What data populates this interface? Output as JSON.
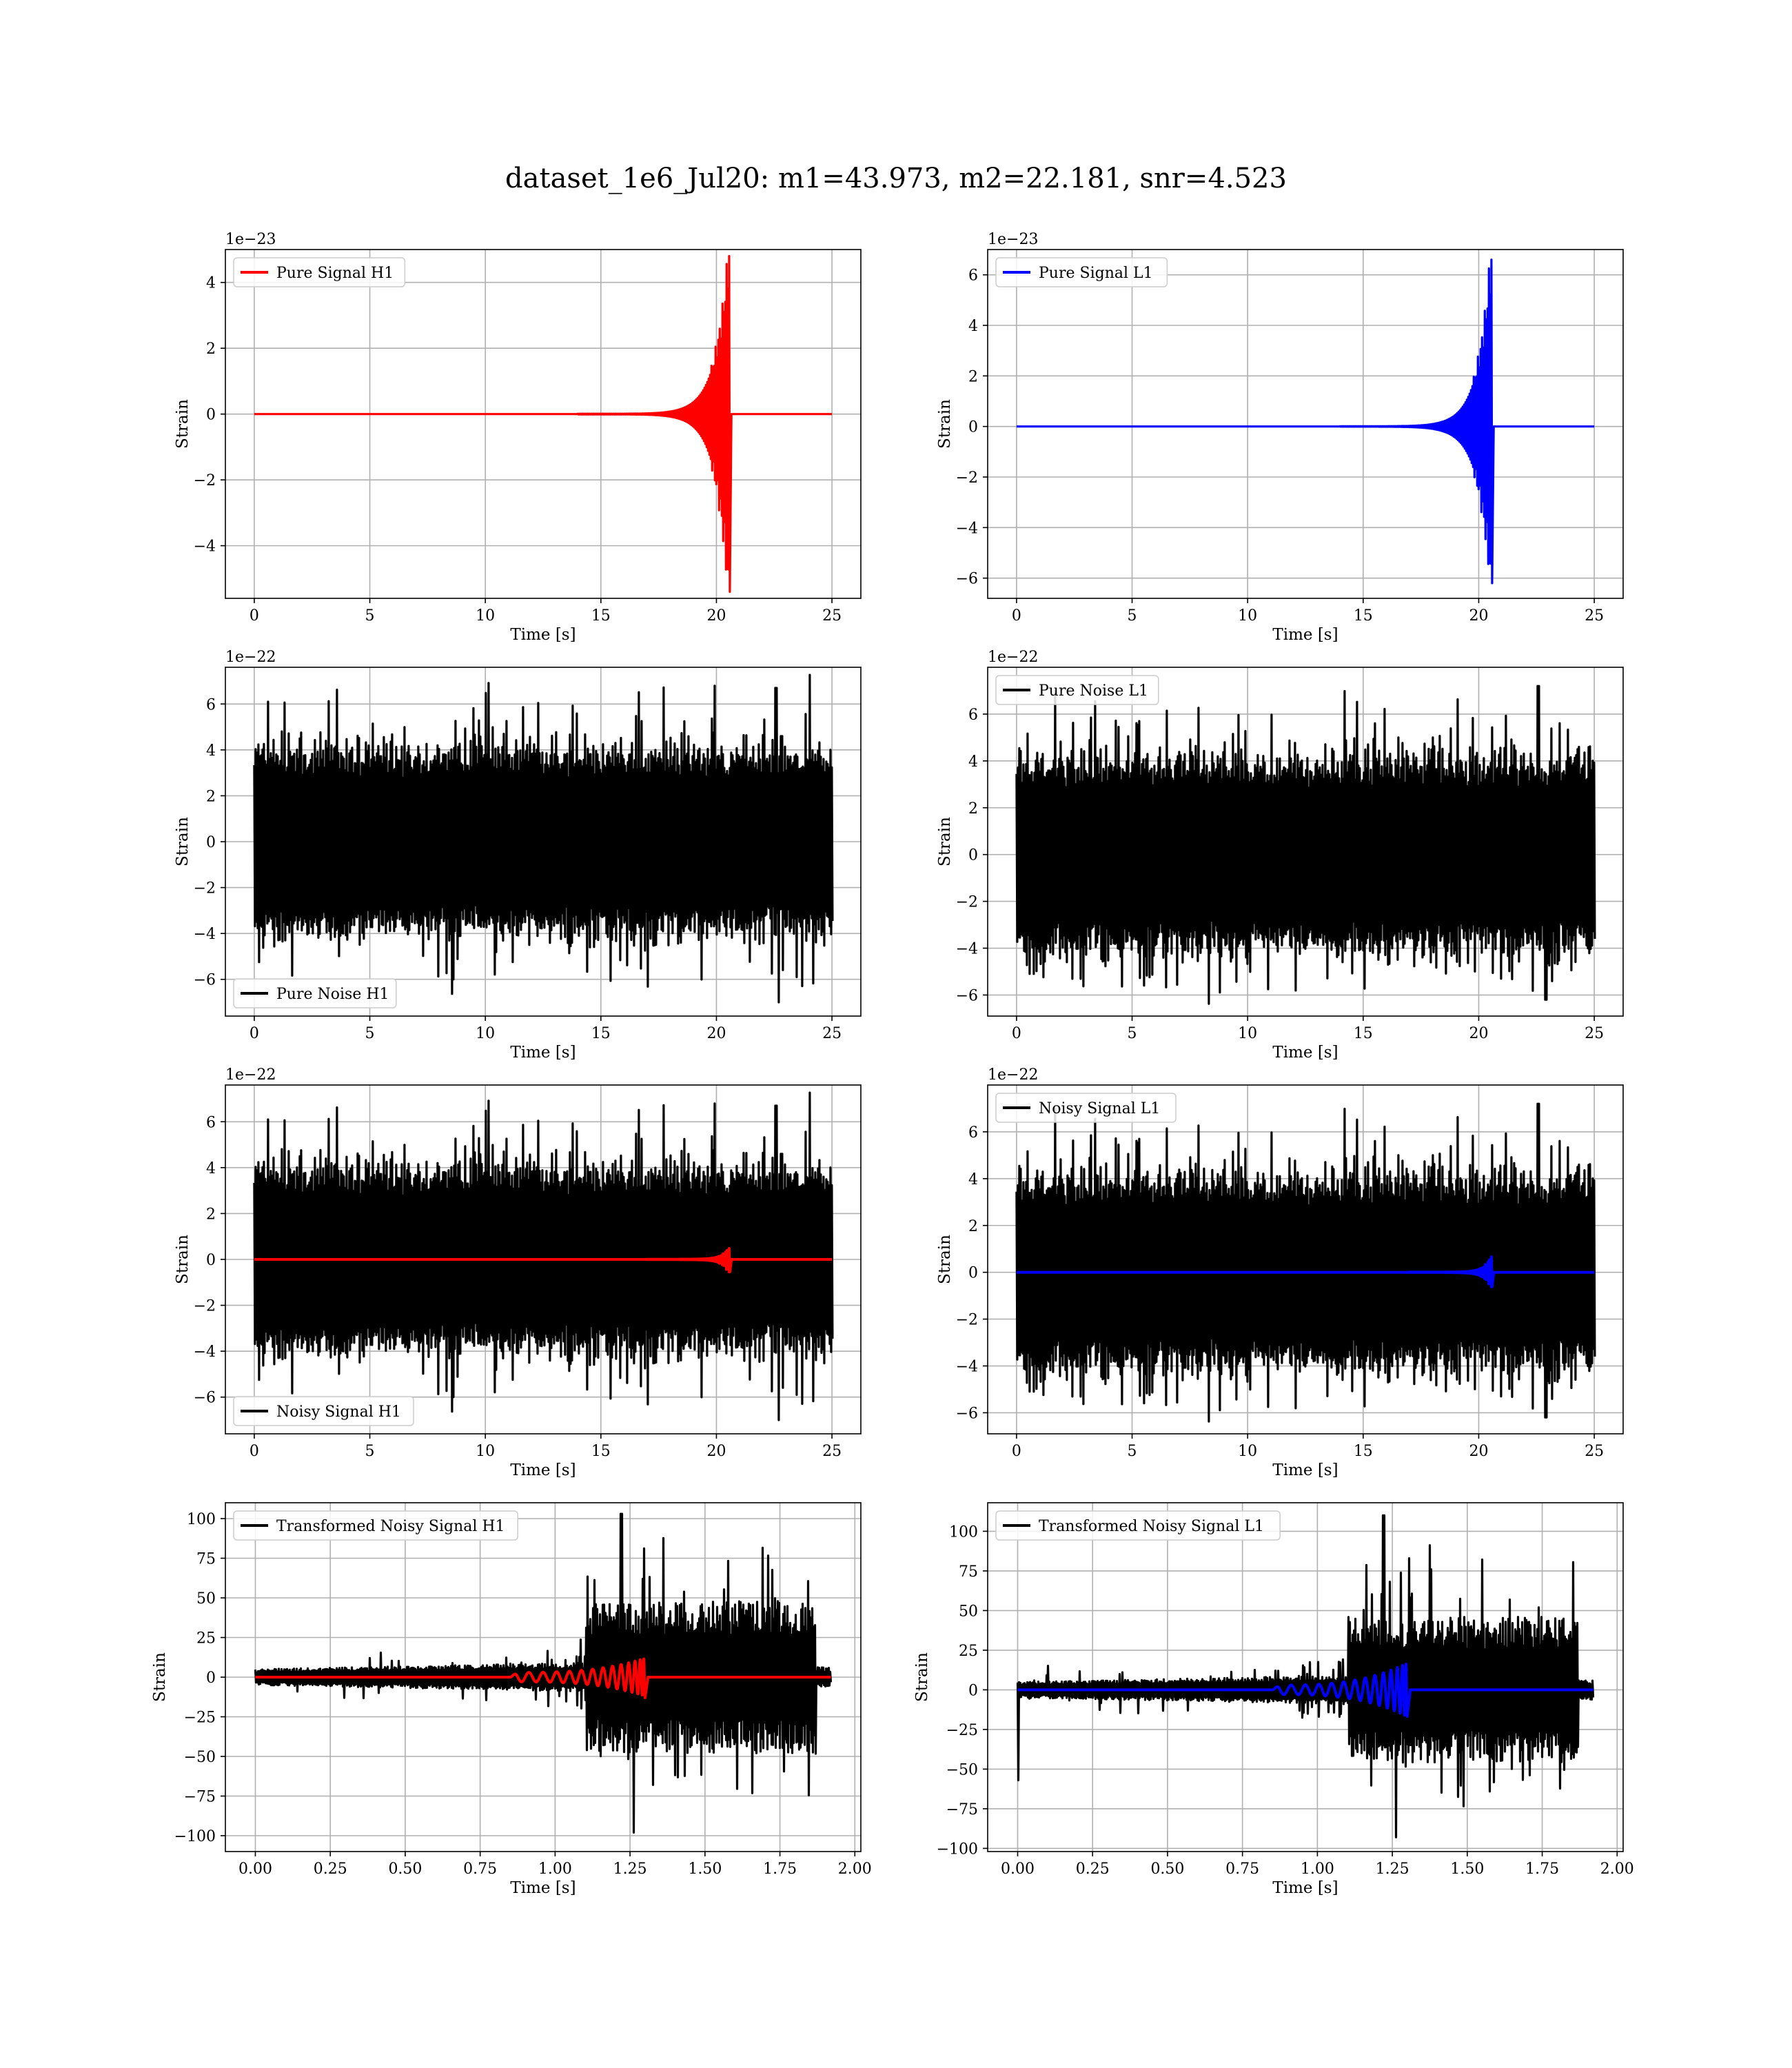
{
  "figure": {
    "title": "dataset_1e6_Jul20: m1=43.973, m2=22.181, snr=4.523"
  },
  "colors": {
    "h1": "#ff0000",
    "l1": "#0000ff",
    "noise": "#000000",
    "grid": "#b0b0b0"
  },
  "chart_data": [
    {
      "id": "pure_signal_h1",
      "type": "line",
      "xlabel": "Time [s]",
      "ylabel": "Strain",
      "offset": "1e−23",
      "xlim": [
        -1.25,
        26.25
      ],
      "ylim": [
        -5.6,
        5.0
      ],
      "xticks": [
        0,
        5,
        10,
        15,
        20,
        25
      ],
      "yticks": [
        -4,
        -2,
        0,
        2,
        4
      ],
      "legend_loc": "upper-left",
      "series": [
        {
          "name": "Pure Signal H1",
          "kind": "chirp",
          "color": "#ff0000",
          "t0": 14,
          "tc": 20.55,
          "tend": 20.65,
          "duration": 25,
          "amp_peak": 4.8,
          "amp_min": -5.4,
          "amp_pre": 1.2
        }
      ]
    },
    {
      "id": "pure_signal_l1",
      "type": "line",
      "xlabel": "Time [s]",
      "ylabel": "Strain",
      "offset": "1e−23",
      "xlim": [
        -1.25,
        26.25
      ],
      "ylim": [
        -6.8,
        7.0
      ],
      "xticks": [
        0,
        5,
        10,
        15,
        20,
        25
      ],
      "yticks": [
        -6,
        -4,
        -2,
        0,
        2,
        4,
        6
      ],
      "legend_loc": "upper-left",
      "series": [
        {
          "name": "Pure Signal L1",
          "kind": "chirp",
          "color": "#0000ff",
          "t0": 14,
          "tc": 20.55,
          "tend": 20.65,
          "duration": 25,
          "amp_peak": 6.6,
          "amp_min": -6.2,
          "amp_pre": 1.5
        }
      ]
    },
    {
      "id": "pure_noise_h1",
      "type": "line",
      "xlabel": "Time [s]",
      "ylabel": "Strain",
      "offset": "1e−22",
      "xlim": [
        -1.25,
        26.25
      ],
      "ylim": [
        -7.6,
        7.6
      ],
      "xticks": [
        0,
        5,
        10,
        15,
        20,
        25
      ],
      "yticks": [
        -6,
        -4,
        -2,
        0,
        2,
        4,
        6
      ],
      "legend_loc": "lower-left",
      "series": [
        {
          "name": "Pure Noise H1",
          "kind": "noise",
          "color": "#000000",
          "duration": 25,
          "core": 3.5,
          "max": 6.7,
          "min": -7.0,
          "seed": 11
        }
      ]
    },
    {
      "id": "pure_noise_l1",
      "type": "line",
      "xlabel": "Time [s]",
      "ylabel": "Strain",
      "offset": "1e−22",
      "xlim": [
        -1.25,
        26.25
      ],
      "ylim": [
        -6.9,
        8.0
      ],
      "xticks": [
        0,
        5,
        10,
        15,
        20,
        25
      ],
      "yticks": [
        -6,
        -4,
        -2,
        0,
        2,
        4,
        6
      ],
      "legend_loc": "upper-left",
      "series": [
        {
          "name": "Pure Noise L1",
          "kind": "noise",
          "color": "#000000",
          "duration": 25,
          "core": 3.6,
          "max": 7.2,
          "min": -6.2,
          "seed": 23
        }
      ]
    },
    {
      "id": "noisy_signal_h1",
      "type": "line",
      "xlabel": "Time [s]",
      "ylabel": "Strain",
      "offset": "1e−22",
      "xlim": [
        -1.25,
        26.25
      ],
      "ylim": [
        -7.6,
        7.6
      ],
      "xticks": [
        0,
        5,
        10,
        15,
        20,
        25
      ],
      "yticks": [
        -6,
        -4,
        -2,
        0,
        2,
        4,
        6
      ],
      "legend_loc": "lower-left",
      "series": [
        {
          "name": "Noisy Signal H1",
          "kind": "noise",
          "color": "#000000",
          "duration": 25,
          "core": 3.5,
          "max": 6.7,
          "min": -7.0,
          "seed": 11
        },
        {
          "name": "",
          "kind": "chirp",
          "color": "#ff0000",
          "t0": 17,
          "tc": 20.55,
          "tend": 20.65,
          "duration": 25,
          "amp_peak": 0.48,
          "amp_min": -0.54,
          "amp_pre": 0.12
        }
      ]
    },
    {
      "id": "noisy_signal_l1",
      "type": "line",
      "xlabel": "Time [s]",
      "ylabel": "Strain",
      "offset": "1e−22",
      "xlim": [
        -1.25,
        26.25
      ],
      "ylim": [
        -6.9,
        8.0
      ],
      "xticks": [
        0,
        5,
        10,
        15,
        20,
        25
      ],
      "yticks": [
        -6,
        -4,
        -2,
        0,
        2,
        4,
        6
      ],
      "legend_loc": "upper-left",
      "series": [
        {
          "name": "Noisy Signal L1",
          "kind": "noise",
          "color": "#000000",
          "duration": 25,
          "core": 3.6,
          "max": 7.2,
          "min": -6.2,
          "seed": 23
        },
        {
          "name": "",
          "kind": "chirp",
          "color": "#0000ff",
          "t0": 17,
          "tc": 20.55,
          "tend": 20.65,
          "duration": 25,
          "amp_peak": 0.66,
          "amp_min": -0.62,
          "amp_pre": 0.15
        }
      ]
    },
    {
      "id": "transformed_noisy_signal_h1",
      "type": "line",
      "xlabel": "Time [s]",
      "ylabel": "Strain",
      "offset": "",
      "xlim": [
        -0.1,
        2.02
      ],
      "ylim": [
        -110,
        110
      ],
      "xticks": [
        0.0,
        0.25,
        0.5,
        0.75,
        1.0,
        1.25,
        1.5,
        1.75,
        2.0
      ],
      "xticklabels": [
        "0.00",
        "0.25",
        "0.50",
        "0.75",
        "1.00",
        "1.25",
        "1.50",
        "1.75",
        "2.00"
      ],
      "yticks": [
        -100,
        -75,
        -50,
        -25,
        0,
        25,
        50,
        75,
        100
      ],
      "legend_loc": "upper-left",
      "series": [
        {
          "name": "Transformed Noisy Signal H1",
          "kind": "tnoise",
          "color": "#000000",
          "duration": 1.92,
          "t1": 1.1,
          "t2": 1.87,
          "pre": 9,
          "pre_max": 16,
          "post": 48,
          "max": 103,
          "min": -98,
          "seed": 41
        },
        {
          "name": "",
          "kind": "chirp",
          "color": "#ff0000",
          "t0": 0.85,
          "tc": 1.3,
          "tend": 1.31,
          "duration": 1.92,
          "amp_peak": 12,
          "amp_min": -13,
          "amp_pre": 3,
          "cycles": 14
        }
      ]
    },
    {
      "id": "transformed_noisy_signal_l1",
      "type": "line",
      "xlabel": "Time [s]",
      "ylabel": "Strain",
      "offset": "",
      "xlim": [
        -0.1,
        2.02
      ],
      "ylim": [
        -102,
        118
      ],
      "xticks": [
        0.0,
        0.25,
        0.5,
        0.75,
        1.0,
        1.25,
        1.5,
        1.75,
        2.0
      ],
      "xticklabels": [
        "0.00",
        "0.25",
        "0.50",
        "0.75",
        "1.00",
        "1.25",
        "1.50",
        "1.75",
        "2.00"
      ],
      "yticks": [
        -100,
        -75,
        -50,
        -25,
        0,
        25,
        50,
        75,
        100
      ],
      "legend_loc": "upper-left",
      "series": [
        {
          "name": "Transformed Noisy Signal L1",
          "kind": "tnoise",
          "color": "#000000",
          "duration": 1.92,
          "t1": 1.1,
          "t2": 1.87,
          "pre": 9,
          "pre_max": 16,
          "post": 46,
          "max": 110,
          "min": -93,
          "seed": 57,
          "spike_t": 0.0,
          "spike_v": -57
        },
        {
          "name": "",
          "kind": "chirp",
          "color": "#0000ff",
          "t0": 0.85,
          "tc": 1.3,
          "tend": 1.31,
          "duration": 1.92,
          "amp_peak": 17,
          "amp_min": -16,
          "amp_pre": 3,
          "cycles": 14
        }
      ]
    }
  ]
}
